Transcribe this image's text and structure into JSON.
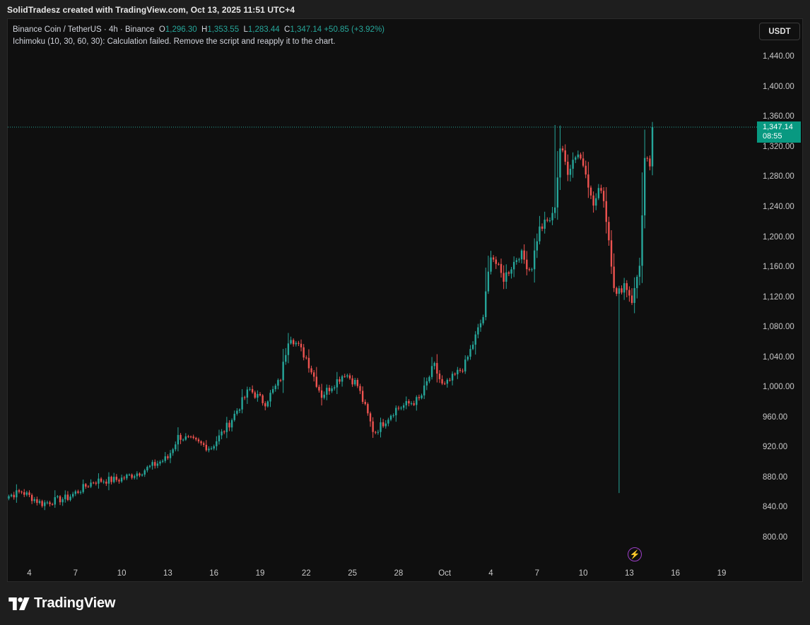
{
  "header": {
    "credit": "SolidTradesz created with TradingView.com, Oct 13, 2025 11:51 UTC+4"
  },
  "legend": {
    "symbol": "Binance Coin / TetherUS · 4h · Binance",
    "o_label": "O",
    "o_value": "1,296.30",
    "h_label": "H",
    "h_value": "1,353.55",
    "l_label": "L",
    "l_value": "1,283.44",
    "c_label": "C",
    "c_value": "1,347.14",
    "change": "+50.85 (+3.92%)",
    "indicator": "Ichimoku (10, 30, 60, 30): Calculation failed. Remove the script and reapply it to the chart."
  },
  "currency_button": "USDT",
  "last_price": {
    "price": "1,347.14",
    "countdown": "08:55"
  },
  "footer": {
    "brand": "TradingView"
  },
  "colors": {
    "up": "#26a69a",
    "down": "#ef5350",
    "tag": "#089981",
    "accent_bolt": "#9c3fc7"
  },
  "icons": {
    "footer_logo": "tradingview-logo-icon",
    "alert": "lightning-icon"
  },
  "chart_data": {
    "type": "candlestick",
    "title": "",
    "interval": "4h",
    "y_axis": {
      "ticks": [
        "800.00",
        "840.00",
        "880.00",
        "920.00",
        "960.00",
        "1,000.00",
        "1,040.00",
        "1,080.00",
        "1,120.00",
        "1,160.00",
        "1,200.00",
        "1,240.00",
        "1,280.00",
        "1,320.00",
        "1,360.00",
        "1,400.00",
        "1,440.00"
      ],
      "ylim": [
        780,
        1470
      ],
      "position": "right"
    },
    "x_axis": {
      "ticks": [
        "4",
        "7",
        "10",
        "13",
        "16",
        "19",
        "22",
        "25",
        "28",
        "Oct",
        "4",
        "7",
        "10",
        "13",
        "16",
        "19"
      ],
      "tick_days": [
        4,
        7,
        10,
        13,
        16,
        19,
        22,
        25,
        28,
        31,
        34,
        37,
        40,
        43,
        46,
        49
      ],
      "day_unit": "days from start of September 2025 (31 = Oct 1)"
    },
    "last_close": 1347.14,
    "anchors": [
      {
        "day": 2.0,
        "price": 852
      },
      {
        "day": 3.5,
        "price": 862
      },
      {
        "day": 4.8,
        "price": 846
      },
      {
        "day": 6.5,
        "price": 854
      },
      {
        "day": 8.2,
        "price": 876
      },
      {
        "day": 9.8,
        "price": 878
      },
      {
        "day": 11.2,
        "price": 888
      },
      {
        "day": 13.0,
        "price": 907
      },
      {
        "day": 13.7,
        "price": 936
      },
      {
        "day": 15.8,
        "price": 920
      },
      {
        "day": 17.0,
        "price": 953
      },
      {
        "day": 18.3,
        "price": 998
      },
      {
        "day": 19.3,
        "price": 980
      },
      {
        "day": 20.3,
        "price": 1010
      },
      {
        "day": 20.9,
        "price": 1072
      },
      {
        "day": 22.0,
        "price": 1040
      },
      {
        "day": 23.0,
        "price": 990
      },
      {
        "day": 24.5,
        "price": 1020
      },
      {
        "day": 25.3,
        "price": 1005
      },
      {
        "day": 26.4,
        "price": 940
      },
      {
        "day": 27.8,
        "price": 972
      },
      {
        "day": 29.4,
        "price": 985
      },
      {
        "day": 30.3,
        "price": 1030
      },
      {
        "day": 30.9,
        "price": 1000
      },
      {
        "day": 32.3,
        "price": 1030
      },
      {
        "day": 33.5,
        "price": 1095
      },
      {
        "day": 34.0,
        "price": 1180
      },
      {
        "day": 34.8,
        "price": 1145
      },
      {
        "day": 35.9,
        "price": 1180
      },
      {
        "day": 36.6,
        "price": 1155
      },
      {
        "day": 37.1,
        "price": 1210
      },
      {
        "day": 38.1,
        "price": 1230
      },
      {
        "day": 38.5,
        "price": 1320
      },
      {
        "day": 39.0,
        "price": 1290
      },
      {
        "day": 39.6,
        "price": 1315
      },
      {
        "day": 40.2,
        "price": 1290
      },
      {
        "day": 40.6,
        "price": 1240
      },
      {
        "day": 41.2,
        "price": 1270
      },
      {
        "day": 41.6,
        "price": 1210
      },
      {
        "day": 42.1,
        "price": 1120
      },
      {
        "day": 42.7,
        "price": 1140
      },
      {
        "day": 43.2,
        "price": 1115
      },
      {
        "day": 43.7,
        "price": 1170
      },
      {
        "day": 44.0,
        "price": 1300
      },
      {
        "day": 44.4,
        "price": 1296
      },
      {
        "day": 44.6,
        "price": 1347
      }
    ],
    "extremes": [
      {
        "day": 38.2,
        "high": 1350
      },
      {
        "day": 42.3,
        "low": 860
      },
      {
        "day": 44.6,
        "high": 1354,
        "low": 1283
      }
    ],
    "grid": false,
    "legend": "top-left"
  }
}
